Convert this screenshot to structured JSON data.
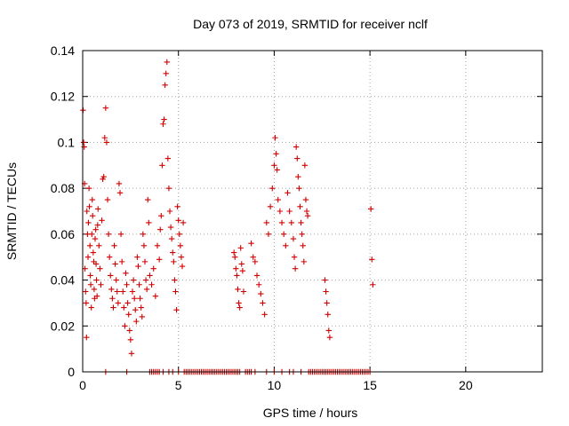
{
  "chart_data": {
    "type": "scatter",
    "title": "Day 073 of 2019, SRMTID for receiver nclf",
    "xlabel": "GPS time / hours",
    "ylabel": "SRMTID / TECUs",
    "xlim": [
      0,
      24
    ],
    "ylim": [
      0,
      0.14
    ],
    "xticks": [
      "0",
      "5",
      "10",
      "15",
      "20"
    ],
    "yticks": [
      "0",
      "0.02",
      "0.04",
      "0.06",
      "0.08",
      "0.1",
      "0.12",
      "0.14"
    ],
    "grid": true,
    "marker": "+",
    "color": "#d00000",
    "series": [
      {
        "x": [
          0.02,
          0.05,
          0.08,
          0.1,
          0.12,
          0.15,
          0.18,
          0.2,
          0.22,
          0.25,
          0.28,
          0.3,
          0.33,
          0.35,
          0.38,
          0.4,
          0.42,
          0.45,
          0.48,
          0.5,
          0.52,
          0.55,
          0.58,
          0.6,
          0.62,
          0.65,
          0.68,
          0.7,
          0.72,
          0.75,
          0.78,
          0.8,
          0.85,
          0.9,
          0.95,
          1.0,
          1.05,
          1.1,
          1.15,
          1.2,
          1.25,
          1.3,
          1.35,
          1.4,
          1.45,
          1.5,
          1.55,
          1.6,
          1.65,
          1.7,
          1.75,
          1.8,
          1.85,
          1.9,
          1.95,
          2.0,
          2.05,
          2.1,
          2.15,
          2.2,
          2.25,
          2.3,
          2.35,
          2.4,
          2.45,
          2.5,
          2.55,
          2.6,
          2.65,
          2.7,
          2.75,
          2.8,
          2.85,
          2.9,
          2.95,
          3.0,
          3.05,
          3.1,
          3.15,
          3.2,
          3.25,
          3.3,
          3.35,
          3.4,
          3.45,
          3.5,
          3.6,
          3.7,
          3.8,
          3.9,
          4.0,
          4.05,
          4.1,
          4.15,
          4.2,
          4.25,
          4.3,
          4.35,
          4.4,
          4.45,
          4.5,
          4.55,
          4.6,
          4.65,
          4.7,
          4.75,
          4.8,
          4.85,
          4.9,
          4.95,
          5.0,
          5.05,
          5.1,
          5.15,
          5.2,
          5.25
        ],
        "y": [
          0.114,
          0.1,
          0.098,
          0.082,
          0.045,
          0.035,
          0.03,
          0.015,
          0.07,
          0.06,
          0.05,
          0.065,
          0.08,
          0.072,
          0.055,
          0.042,
          0.038,
          0.028,
          0.06,
          0.075,
          0.068,
          0.052,
          0.048,
          0.036,
          0.032,
          0.058,
          0.062,
          0.047,
          0.04,
          0.033,
          0.064,
          0.071,
          0.055,
          0.045,
          0.038,
          0.066,
          0.084,
          0.085,
          0.102,
          0.115,
          0.1,
          0.075,
          0.06,
          0.05,
          0.042,
          0.036,
          0.032,
          0.028,
          0.055,
          0.047,
          0.04,
          0.035,
          0.03,
          0.082,
          0.078,
          0.06,
          0.048,
          0.035,
          0.028,
          0.02,
          0.043,
          0.038,
          0.03,
          0.025,
          0.018,
          0.014,
          0.008,
          0.035,
          0.04,
          0.032,
          0.027,
          0.022,
          0.05,
          0.046,
          0.038,
          0.032,
          0.028,
          0.024,
          0.06,
          0.055,
          0.048,
          0.04,
          0.036,
          0.075,
          0.065,
          0.042,
          0.038,
          0.045,
          0.033,
          0.055,
          0.049,
          0.062,
          0.068,
          0.09,
          0.108,
          0.11,
          0.125,
          0.13,
          0.135,
          0.093,
          0.08,
          0.07,
          0.063,
          0.058,
          0.052,
          0.048,
          0.04,
          0.035,
          0.027,
          0.072,
          0.066,
          0.06,
          0.055,
          0.05,
          0.046,
          0.065
        ],
        "name": ""
      },
      {
        "x": [
          7.9,
          7.95,
          8.0,
          8.05,
          8.1,
          8.15,
          8.2,
          8.25,
          8.3,
          8.35,
          8.4,
          8.8,
          8.9,
          9.0,
          9.1,
          9.2,
          9.3,
          9.4,
          9.5,
          9.6,
          9.7,
          9.8,
          9.9,
          10.0,
          10.05,
          10.1,
          10.15,
          10.2,
          10.3,
          10.4,
          10.5,
          10.6,
          10.7,
          10.8,
          10.9,
          11.0,
          11.05,
          11.1,
          11.15,
          11.2,
          11.25,
          11.3,
          11.35,
          11.4,
          11.45,
          11.5,
          11.55,
          11.6,
          11.65,
          11.7,
          11.75,
          12.65,
          12.7,
          12.75,
          12.8,
          12.85,
          12.9,
          15.05,
          15.1,
          15.15
        ],
        "y": [
          0.052,
          0.05,
          0.045,
          0.042,
          0.036,
          0.03,
          0.028,
          0.054,
          0.047,
          0.044,
          0.035,
          0.056,
          0.05,
          0.048,
          0.042,
          0.038,
          0.034,
          0.03,
          0.025,
          0.065,
          0.06,
          0.072,
          0.08,
          0.09,
          0.102,
          0.095,
          0.088,
          0.075,
          0.07,
          0.065,
          0.06,
          0.055,
          0.078,
          0.07,
          0.065,
          0.058,
          0.05,
          0.045,
          0.098,
          0.093,
          0.085,
          0.08,
          0.072,
          0.065,
          0.06,
          0.055,
          0.048,
          0.09,
          0.075,
          0.07,
          0.068,
          0.04,
          0.035,
          0.03,
          0.025,
          0.018,
          0.015,
          0.071,
          0.049,
          0.038
        ],
        "name": ""
      },
      {
        "x": [
          1.2,
          2.3,
          3.5,
          3.6,
          3.7,
          3.8,
          3.9,
          4.0,
          4.2,
          4.5,
          4.7,
          5.0,
          5.3,
          5.4,
          5.5,
          5.6,
          5.7,
          5.8,
          5.9,
          6.0,
          6.1,
          6.2,
          6.3,
          6.4,
          6.5,
          6.6,
          6.7,
          6.8,
          6.9,
          7.0,
          7.1,
          7.2,
          7.3,
          7.4,
          7.5,
          7.6,
          7.7,
          7.8,
          7.9,
          8.0,
          8.1,
          8.2,
          8.5,
          8.6,
          8.7,
          8.8,
          9.0,
          9.6,
          10.0,
          10.4,
          10.8,
          11.0,
          11.4,
          11.8,
          11.9,
          12.0,
          12.1,
          12.2,
          12.3,
          12.4,
          12.5,
          12.6,
          12.7,
          12.8,
          12.9,
          13.0,
          13.1,
          13.2,
          13.3,
          13.4,
          13.5,
          13.6,
          13.7,
          13.8,
          13.9,
          14.0,
          14.1,
          14.2,
          14.3,
          14.4,
          14.5,
          14.6,
          14.7,
          14.8,
          14.9,
          15.0
        ],
        "y": [
          0,
          0,
          0,
          0,
          0,
          0,
          0,
          0,
          0,
          0,
          0,
          0,
          0,
          0,
          0,
          0,
          0,
          0,
          0,
          0,
          0,
          0,
          0,
          0,
          0,
          0,
          0,
          0,
          0,
          0,
          0,
          0,
          0,
          0,
          0,
          0,
          0,
          0,
          0,
          0,
          0,
          0,
          0,
          0,
          0,
          0,
          0,
          0,
          0,
          0,
          0,
          0,
          0,
          0,
          0,
          0,
          0,
          0,
          0,
          0,
          0,
          0,
          0,
          0,
          0,
          0,
          0,
          0,
          0,
          0,
          0,
          0,
          0,
          0,
          0,
          0,
          0,
          0,
          0,
          0,
          0,
          0,
          0,
          0,
          0,
          0
        ],
        "name": ""
      }
    ]
  }
}
